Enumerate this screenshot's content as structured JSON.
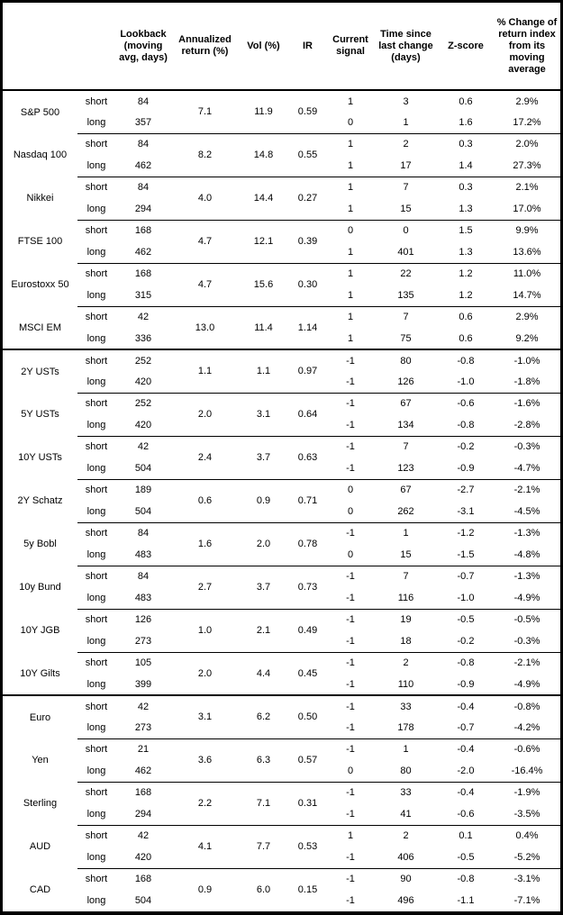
{
  "header": {
    "name": "",
    "leg": "",
    "lookback": "Lookback\n(moving\navg, days)",
    "annualized": "Annualized\nreturn (%)",
    "vol": "Vol (%)",
    "ir": "IR",
    "signal": "Current\nsignal",
    "time": "Time since\nlast change\n(days)",
    "zscore": "Z-score",
    "pct": "% Change of\nreturn index\nfrom its\nmoving\naverage"
  },
  "sections": [
    {
      "groups": [
        {
          "name": "S&P 500",
          "annualized": "7.1",
          "vol": "11.9",
          "ir": "0.59",
          "rows": [
            {
              "leg": "short",
              "lookback": "84",
              "signal": "1",
              "time": "3",
              "z": "0.6",
              "pct": "2.9%"
            },
            {
              "leg": "long",
              "lookback": "357",
              "signal": "0",
              "time": "1",
              "z": "1.6",
              "pct": "17.2%"
            }
          ]
        },
        {
          "name": "Nasdaq 100",
          "annualized": "8.2",
          "vol": "14.8",
          "ir": "0.55",
          "rows": [
            {
              "leg": "short",
              "lookback": "84",
              "signal": "1",
              "time": "2",
              "z": "0.3",
              "pct": "2.0%"
            },
            {
              "leg": "long",
              "lookback": "462",
              "signal": "1",
              "time": "17",
              "z": "1.4",
              "pct": "27.3%"
            }
          ]
        },
        {
          "name": "Nikkei",
          "annualized": "4.0",
          "vol": "14.4",
          "ir": "0.27",
          "rows": [
            {
              "leg": "short",
              "lookback": "84",
              "signal": "1",
              "time": "7",
              "z": "0.3",
              "pct": "2.1%"
            },
            {
              "leg": "long",
              "lookback": "294",
              "signal": "1",
              "time": "15",
              "z": "1.3",
              "pct": "17.0%"
            }
          ]
        },
        {
          "name": "FTSE 100",
          "annualized": "4.7",
          "vol": "12.1",
          "ir": "0.39",
          "rows": [
            {
              "leg": "short",
              "lookback": "168",
              "signal": "0",
              "time": "0",
              "z": "1.5",
              "pct": "9.9%"
            },
            {
              "leg": "long",
              "lookback": "462",
              "signal": "1",
              "time": "401",
              "z": "1.3",
              "pct": "13.6%"
            }
          ]
        },
        {
          "name": "Eurostoxx 50",
          "annualized": "4.7",
          "vol": "15.6",
          "ir": "0.30",
          "rows": [
            {
              "leg": "short",
              "lookback": "168",
              "signal": "1",
              "time": "22",
              "z": "1.2",
              "pct": "11.0%"
            },
            {
              "leg": "long",
              "lookback": "315",
              "signal": "1",
              "time": "135",
              "z": "1.2",
              "pct": "14.7%"
            }
          ]
        },
        {
          "name": "MSCI EM",
          "annualized": "13.0",
          "vol": "11.4",
          "ir": "1.14",
          "rows": [
            {
              "leg": "short",
              "lookback": "42",
              "signal": "1",
              "time": "7",
              "z": "0.6",
              "pct": "2.9%"
            },
            {
              "leg": "long",
              "lookback": "336",
              "signal": "1",
              "time": "75",
              "z": "0.6",
              "pct": "9.2%"
            }
          ]
        }
      ]
    },
    {
      "groups": [
        {
          "name": "2Y USTs",
          "annualized": "1.1",
          "vol": "1.1",
          "ir": "0.97",
          "rows": [
            {
              "leg": "short",
              "lookback": "252",
              "signal": "-1",
              "time": "80",
              "z": "-0.8",
              "pct": "-1.0%"
            },
            {
              "leg": "long",
              "lookback": "420",
              "signal": "-1",
              "time": "126",
              "z": "-1.0",
              "pct": "-1.8%"
            }
          ]
        },
        {
          "name": "5Y USTs",
          "annualized": "2.0",
          "vol": "3.1",
          "ir": "0.64",
          "rows": [
            {
              "leg": "short",
              "lookback": "252",
              "signal": "-1",
              "time": "67",
              "z": "-0.6",
              "pct": "-1.6%"
            },
            {
              "leg": "long",
              "lookback": "420",
              "signal": "-1",
              "time": "134",
              "z": "-0.8",
              "pct": "-2.8%"
            }
          ]
        },
        {
          "name": "10Y USTs",
          "annualized": "2.4",
          "vol": "3.7",
          "ir": "0.63",
          "rows": [
            {
              "leg": "short",
              "lookback": "42",
              "signal": "-1",
              "time": "7",
              "z": "-0.2",
              "pct": "-0.3%"
            },
            {
              "leg": "long",
              "lookback": "504",
              "signal": "-1",
              "time": "123",
              "z": "-0.9",
              "pct": "-4.7%"
            }
          ]
        },
        {
          "name": "2Y Schatz",
          "annualized": "0.6",
          "vol": "0.9",
          "ir": "0.71",
          "rows": [
            {
              "leg": "short",
              "lookback": "189",
              "signal": "0",
              "time": "67",
              "z": "-2.7",
              "pct": "-2.1%"
            },
            {
              "leg": "long",
              "lookback": "504",
              "signal": "0",
              "time": "262",
              "z": "-3.1",
              "pct": "-4.5%"
            }
          ]
        },
        {
          "name": "5y Bobl",
          "annualized": "1.6",
          "vol": "2.0",
          "ir": "0.78",
          "rows": [
            {
              "leg": "short",
              "lookback": "84",
              "signal": "-1",
              "time": "1",
              "z": "-1.2",
              "pct": "-1.3%"
            },
            {
              "leg": "long",
              "lookback": "483",
              "signal": "0",
              "time": "15",
              "z": "-1.5",
              "pct": "-4.8%"
            }
          ]
        },
        {
          "name": "10y Bund",
          "annualized": "2.7",
          "vol": "3.7",
          "ir": "0.73",
          "rows": [
            {
              "leg": "short",
              "lookback": "84",
              "signal": "-1",
              "time": "7",
              "z": "-0.7",
              "pct": "-1.3%"
            },
            {
              "leg": "long",
              "lookback": "483",
              "signal": "-1",
              "time": "116",
              "z": "-1.0",
              "pct": "-4.9%"
            }
          ]
        },
        {
          "name": "10Y JGB",
          "annualized": "1.0",
          "vol": "2.1",
          "ir": "0.49",
          "rows": [
            {
              "leg": "short",
              "lookback": "126",
              "signal": "-1",
              "time": "19",
              "z": "-0.5",
              "pct": "-0.5%"
            },
            {
              "leg": "long",
              "lookback": "273",
              "signal": "-1",
              "time": "18",
              "z": "-0.2",
              "pct": "-0.3%"
            }
          ]
        },
        {
          "name": "10Y Gilts",
          "annualized": "2.0",
          "vol": "4.4",
          "ir": "0.45",
          "rows": [
            {
              "leg": "short",
              "lookback": "105",
              "signal": "-1",
              "time": "2",
              "z": "-0.8",
              "pct": "-2.1%"
            },
            {
              "leg": "long",
              "lookback": "399",
              "signal": "-1",
              "time": "110",
              "z": "-0.9",
              "pct": "-4.9%"
            }
          ]
        }
      ]
    },
    {
      "groups": [
        {
          "name": "Euro",
          "annualized": "3.1",
          "vol": "6.2",
          "ir": "0.50",
          "rows": [
            {
              "leg": "short",
              "lookback": "42",
              "signal": "-1",
              "time": "33",
              "z": "-0.4",
              "pct": "-0.8%"
            },
            {
              "leg": "long",
              "lookback": "273",
              "signal": "-1",
              "time": "178",
              "z": "-0.7",
              "pct": "-4.2%"
            }
          ]
        },
        {
          "name": "Yen",
          "annualized": "3.6",
          "vol": "6.3",
          "ir": "0.57",
          "rows": [
            {
              "leg": "short",
              "lookback": "21",
              "signal": "-1",
              "time": "1",
              "z": "-0.4",
              "pct": "-0.6%"
            },
            {
              "leg": "long",
              "lookback": "462",
              "signal": "0",
              "time": "80",
              "z": "-2.0",
              "pct": "-16.4%"
            }
          ]
        },
        {
          "name": "Sterling",
          "annualized": "2.2",
          "vol": "7.1",
          "ir": "0.31",
          "rows": [
            {
              "leg": "short",
              "lookback": "168",
              "signal": "-1",
              "time": "33",
              "z": "-0.4",
              "pct": "-1.9%"
            },
            {
              "leg": "long",
              "lookback": "294",
              "signal": "-1",
              "time": "41",
              "z": "-0.6",
              "pct": "-3.5%"
            }
          ]
        },
        {
          "name": "AUD",
          "annualized": "4.1",
          "vol": "7.7",
          "ir": "0.53",
          "rows": [
            {
              "leg": "short",
              "lookback": "42",
              "signal": "1",
              "time": "2",
              "z": "0.1",
              "pct": "0.4%"
            },
            {
              "leg": "long",
              "lookback": "420",
              "signal": "-1",
              "time": "406",
              "z": "-0.5",
              "pct": "-5.2%"
            }
          ]
        },
        {
          "name": "CAD",
          "annualized": "0.9",
          "vol": "6.0",
          "ir": "0.15",
          "rows": [
            {
              "leg": "short",
              "lookback": "168",
              "signal": "-1",
              "time": "90",
              "z": "-0.8",
              "pct": "-3.1%"
            },
            {
              "leg": "long",
              "lookback": "504",
              "signal": "-1",
              "time": "496",
              "z": "-1.1",
              "pct": "-7.1%"
            }
          ]
        }
      ]
    }
  ]
}
